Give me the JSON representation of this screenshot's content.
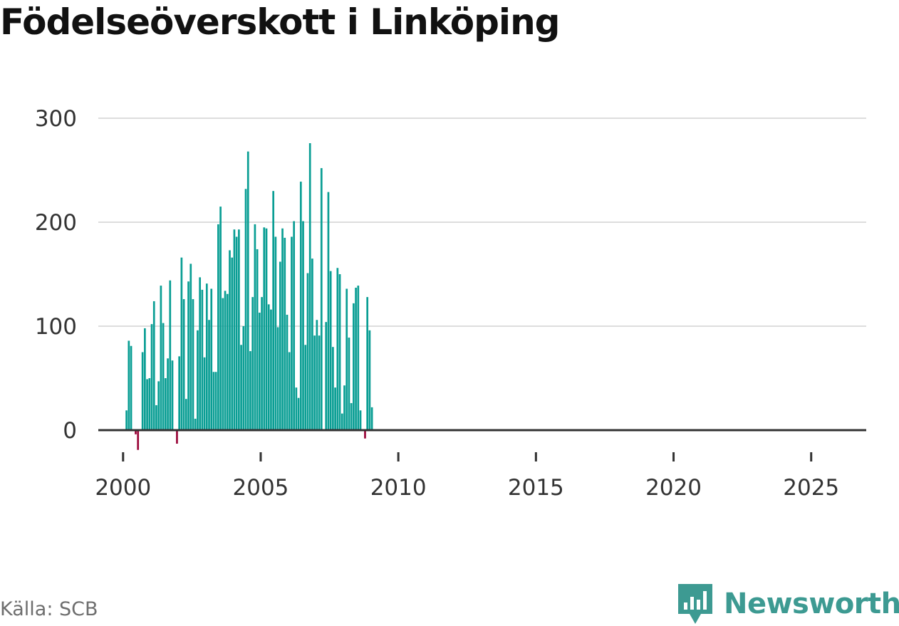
{
  "title": "Födelseöverskott i Linköping",
  "source": "Källa: SCB",
  "brand": {
    "name": "Newsworthy",
    "icon": "newsworthy-logo-icon",
    "color": "#3d9a92"
  },
  "colors": {
    "positive": "#0a9e94",
    "negative": "#9a0638",
    "grid": "#dddddd",
    "axis": "#333333"
  },
  "chart_data": {
    "type": "bar",
    "title": "Födelseöverskott i Linköping",
    "xlabel": "",
    "ylabel": "",
    "ylim": [
      -20,
      300
    ],
    "yticks": [
      0,
      100,
      200,
      300
    ],
    "xlim": [
      1999.1,
      2027.0
    ],
    "xticks": [
      2000,
      2005,
      2010,
      2015,
      2020,
      2025
    ],
    "grid": true,
    "frequency": "monthly, January 2000 onwards (x = year + month fraction)",
    "values": [
      0,
      19,
      86,
      81,
      0,
      -4,
      -19,
      0,
      75,
      98,
      49,
      50,
      102,
      124,
      24,
      47,
      139,
      103,
      50,
      69,
      144,
      67,
      0,
      -13,
      71,
      166,
      126,
      30,
      143,
      160,
      126,
      11,
      96,
      147,
      135,
      70,
      141,
      106,
      136,
      56,
      56,
      198,
      215,
      127,
      134,
      131,
      173,
      166,
      193,
      186,
      193,
      82,
      100,
      232,
      268,
      76,
      128,
      198,
      174,
      113,
      128,
      195,
      194,
      121,
      116,
      230,
      186,
      99,
      162,
      194,
      185,
      111,
      75,
      186,
      201,
      41,
      31,
      239,
      201,
      82,
      151,
      276,
      165,
      91,
      106,
      91,
      252,
      0,
      104,
      229,
      153,
      80,
      41,
      156,
      150,
      16,
      43,
      136,
      89,
      26,
      122,
      137,
      139,
      19,
      0,
      -8,
      128,
      96,
      22
    ]
  }
}
